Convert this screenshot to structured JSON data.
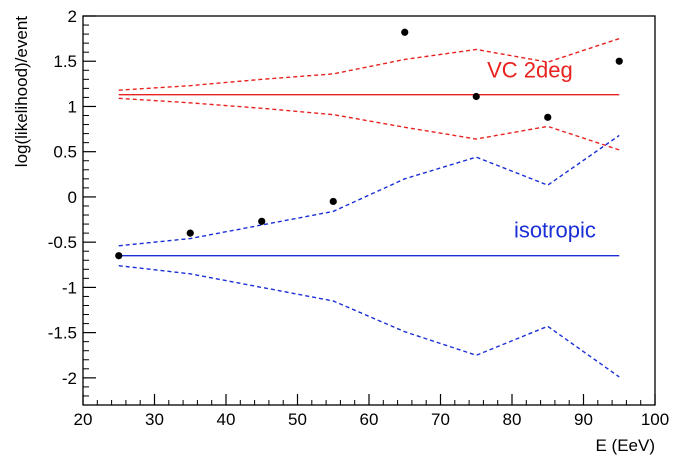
{
  "chart_data": {
    "type": "line",
    "xlabel": "E (EeV)",
    "ylabel": "log(likelihood)/event",
    "xlim": [
      20,
      100
    ],
    "ylim": [
      -2.3,
      2.0
    ],
    "x_ticks": [
      "20",
      "30",
      "40",
      "50",
      "60",
      "70",
      "80",
      "90",
      "100"
    ],
    "y_ticks": [
      "-2",
      "-1.5",
      "-1",
      "-0.5",
      "0",
      "0.5",
      "1",
      "1.5",
      "2"
    ],
    "x_tick_values": [
      20,
      30,
      40,
      50,
      60,
      70,
      80,
      90,
      100
    ],
    "y_tick_values": [
      -2,
      -1.5,
      -1,
      -0.5,
      0,
      0.5,
      1,
      1.5,
      2
    ],
    "grid": false,
    "series": [
      {
        "name": "VC 2deg",
        "color": "#e8231f",
        "style": "solid",
        "x": [
          25,
          95
        ],
        "y": [
          1.13,
          1.13
        ]
      },
      {
        "color": "#e8231f",
        "style": "dashed",
        "x": [
          25,
          35,
          45,
          55,
          65,
          75,
          85,
          95
        ],
        "y": [
          1.18,
          1.23,
          1.3,
          1.36,
          1.52,
          1.63,
          1.49,
          1.75
        ]
      },
      {
        "color": "#e8231f",
        "style": "dashed",
        "x": [
          25,
          35,
          45,
          55,
          65,
          75,
          85,
          95
        ],
        "y": [
          1.09,
          1.04,
          0.98,
          0.91,
          0.77,
          0.64,
          0.78,
          0.52
        ]
      },
      {
        "name": "isotropic",
        "color": "#1a2fd6",
        "style": "solid",
        "x": [
          25,
          95
        ],
        "y": [
          -0.65,
          -0.65
        ]
      },
      {
        "color": "#1a2fd6",
        "style": "dashed",
        "x": [
          25,
          35,
          45,
          55,
          65,
          75,
          85,
          95
        ],
        "y": [
          -0.54,
          -0.46,
          -0.31,
          -0.16,
          0.2,
          0.44,
          0.13,
          0.68
        ]
      },
      {
        "color": "#1a2fd6",
        "style": "dashed",
        "x": [
          25,
          35,
          45,
          55,
          65,
          75,
          85,
          95
        ],
        "y": [
          -0.76,
          -0.85,
          -1.0,
          -1.15,
          -1.49,
          -1.75,
          -1.43,
          -1.99
        ]
      },
      {
        "color": "#000000",
        "style": "markers",
        "x": [
          25,
          35,
          45,
          55,
          65,
          75,
          85,
          95
        ],
        "y": [
          -0.65,
          -0.4,
          -0.27,
          -0.05,
          1.82,
          1.11,
          0.88,
          1.5
        ]
      }
    ],
    "annotations": [
      {
        "text": "VC 2deg",
        "color": "#e8231f",
        "x": 82.5,
        "y": 1.32
      },
      {
        "text": "isotropic",
        "color": "#1a2fd6",
        "x": 86.0,
        "y": -0.45
      }
    ]
  }
}
